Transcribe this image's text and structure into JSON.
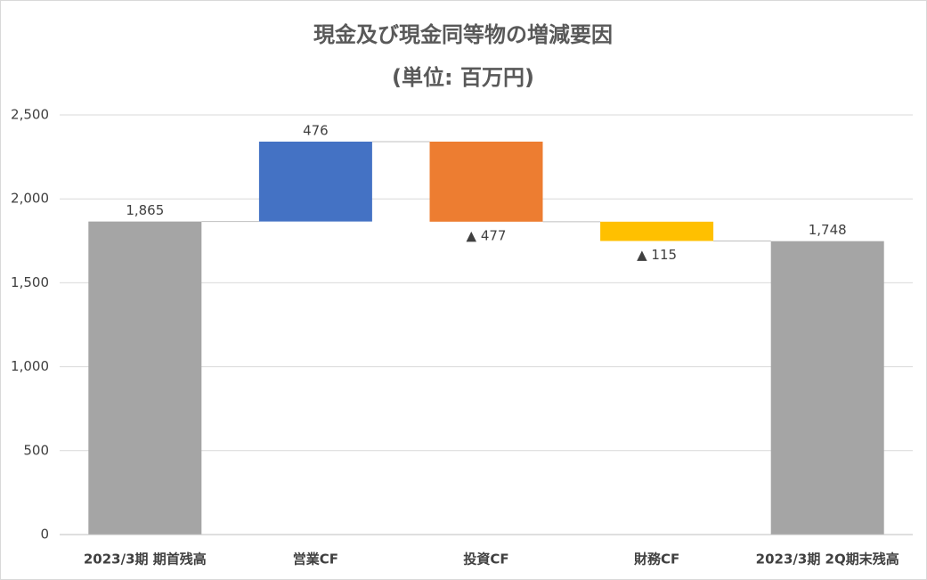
{
  "chart_data": {
    "type": "waterfall",
    "title": "現金及び現金同等物の増減要因",
    "subtitle": "(単位: 百万円)",
    "categories": [
      "2023/3期 期首残高",
      "営業CF",
      "投資CF",
      "財務CF",
      "2023/3期 2Q期末残高"
    ],
    "values": [
      1865,
      476,
      -477,
      -115,
      1748
    ],
    "value_labels": [
      "1,865",
      "476",
      "▲ 477",
      "▲ 115",
      "1,748"
    ],
    "colors": [
      "#a5a5a5",
      "#4472c4",
      "#ed7d31",
      "#ffc000",
      "#a5a5a5"
    ],
    "ylim": [
      0,
      2500
    ],
    "yticks": [
      0,
      500,
      {
        "value": 1000,
        "label": "1,000"
      },
      {
        "value": 1500,
        "label": "1,500"
      },
      {
        "value": 2000,
        "label": "2,000"
      },
      {
        "value": 2500,
        "label": "2,500"
      }
    ],
    "grid": true
  }
}
